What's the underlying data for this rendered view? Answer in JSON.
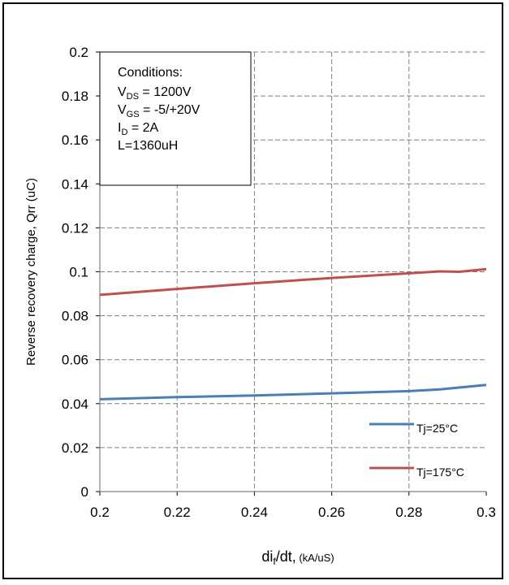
{
  "chart_data": {
    "type": "line",
    "xlabel": {
      "main": "di",
      "sub": "f",
      "rest": "/dt,",
      "unit": "(kA/uS)"
    },
    "ylabel": "Reverse  recovery charge, Qrr (uC)",
    "xlim": [
      0.2,
      0.3
    ],
    "ylim": [
      0,
      0.2
    ],
    "x_ticks": [
      "0.2",
      "0.22",
      "0.24",
      "0.26",
      "0.28",
      "0.3"
    ],
    "y_ticks": [
      "0",
      "0.02",
      "0.04",
      "0.06",
      "0.08",
      "0.1",
      "0.12",
      "0.14",
      "0.16",
      "0.18",
      "0.2"
    ],
    "grid": true,
    "legend_position": "bottom-right",
    "conditions": {
      "title": "Conditions:",
      "lines": [
        {
          "main": "V",
          "sub": "DS",
          "rest": " = 1200V"
        },
        {
          "main": "V",
          "sub": "GS",
          "rest": " = -5/+20V"
        },
        {
          "main": "I",
          "sub": "D",
          "rest": " = 2A"
        },
        {
          "main": "L=1360uH",
          "sub": "",
          "rest": ""
        }
      ]
    },
    "series": [
      {
        "name": "Tj=25°C",
        "color": "#4a7ebb",
        "x": [
          0.2,
          0.22,
          0.24,
          0.26,
          0.28,
          0.288,
          0.3
        ],
        "y": [
          0.042,
          0.043,
          0.0437,
          0.0447,
          0.0457,
          0.0465,
          0.0485
        ]
      },
      {
        "name": "Tj=175°C",
        "color": "#c0504d",
        "x": [
          0.2,
          0.22,
          0.24,
          0.26,
          0.28,
          0.288,
          0.293,
          0.3
        ],
        "y": [
          0.0895,
          0.0922,
          0.0948,
          0.0972,
          0.0993,
          0.1002,
          0.1,
          0.1012
        ]
      }
    ]
  }
}
